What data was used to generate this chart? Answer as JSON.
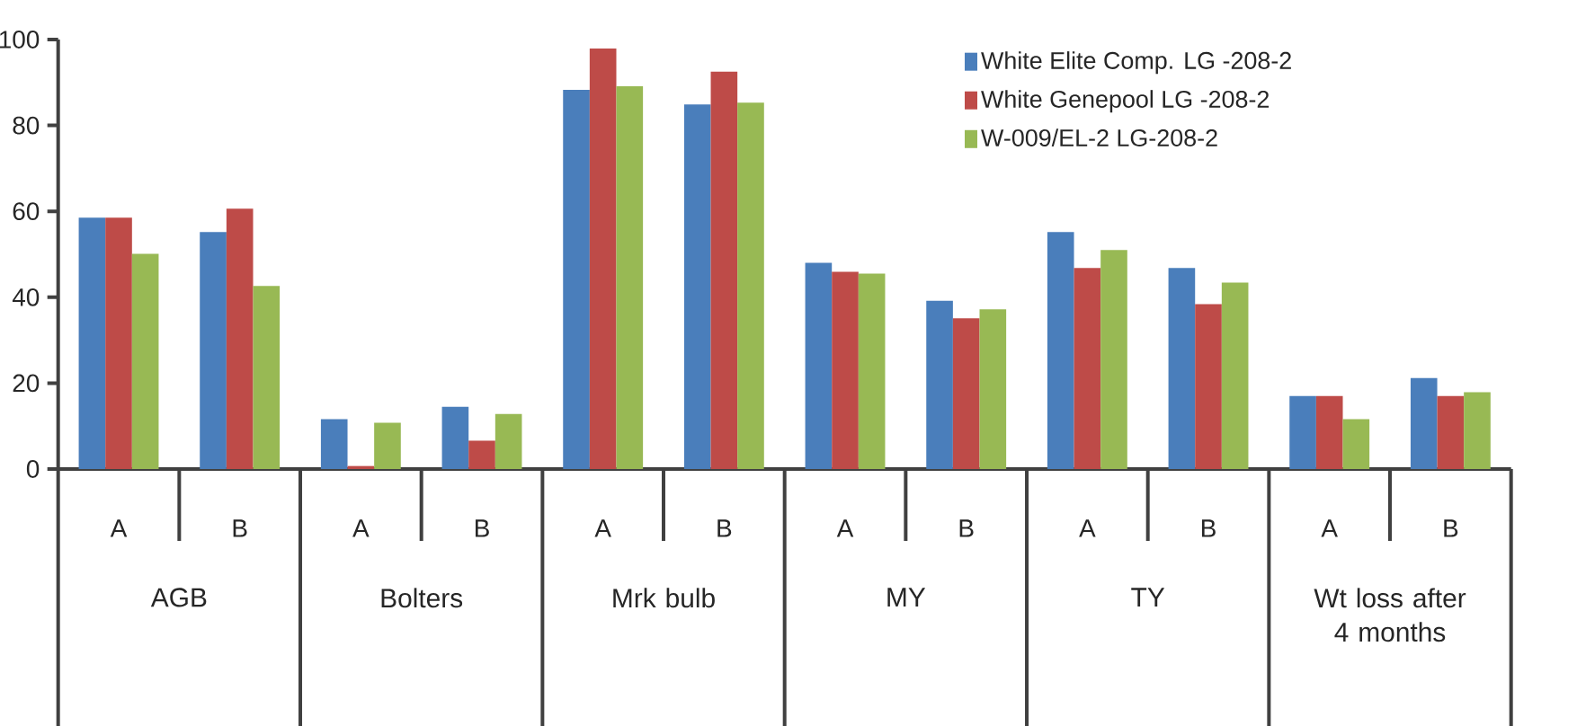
{
  "chart_data": {
    "type": "bar",
    "categories": [
      "A",
      "B",
      "A",
      "B",
      "A",
      "B",
      "A",
      "B",
      "A",
      "B",
      "A",
      "B"
    ],
    "series": [
      {
        "name": "White Elite Comp. LG -208-2",
        "color": "#4a7ebb",
        "values": [
          58.5,
          55.2,
          11.6,
          14.5,
          88.3,
          84.9,
          48.0,
          39.2,
          55.2,
          46.8,
          17.0,
          21.2
        ]
      },
      {
        "name": "White Genepool LG -208-2",
        "color": "#be4b48",
        "values": [
          58.5,
          60.6,
          0.7,
          6.6,
          97.9,
          92.5,
          45.9,
          35.1,
          46.8,
          38.4,
          17.0,
          17.0
        ]
      },
      {
        "name": "W-009/EL-2 LG-208-2",
        "color": "#98b954",
        "values": [
          50.1,
          42.6,
          10.8,
          12.8,
          89.1,
          85.3,
          45.5,
          37.2,
          51.0,
          43.4,
          11.6,
          17.9
        ]
      }
    ],
    "annotations": [
      "AGB",
      "Bolters",
      "Mrk bulb",
      "MY",
      "TY",
      "Wt loss after 4 months"
    ],
    "ylim": [
      0,
      100
    ],
    "yticks": [
      0,
      20,
      40,
      60,
      80,
      100
    ],
    "grid": false,
    "legend": "top right"
  }
}
